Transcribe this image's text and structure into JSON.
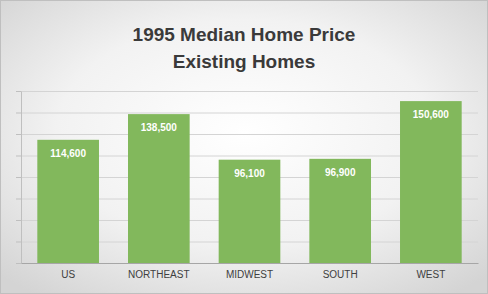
{
  "chart_data": {
    "type": "bar",
    "title": "1995 Median Home Price",
    "subtitle": "Existing Homes",
    "categories": [
      "US",
      "NORTHEAST",
      "MIDWEST",
      "SOUTH",
      "WEST"
    ],
    "values": [
      114600,
      138500,
      96100,
      96900,
      150600
    ],
    "value_labels": [
      "114,600",
      "138,500",
      "96,100",
      "96,900",
      "150,600"
    ],
    "color": "#82b85c",
    "ylim": [
      0,
      160000
    ],
    "yticks": [
      0,
      20000,
      40000,
      60000,
      80000,
      100000,
      120000,
      140000,
      160000
    ],
    "grid": true,
    "data_labels": true,
    "tick_labels": "x"
  }
}
